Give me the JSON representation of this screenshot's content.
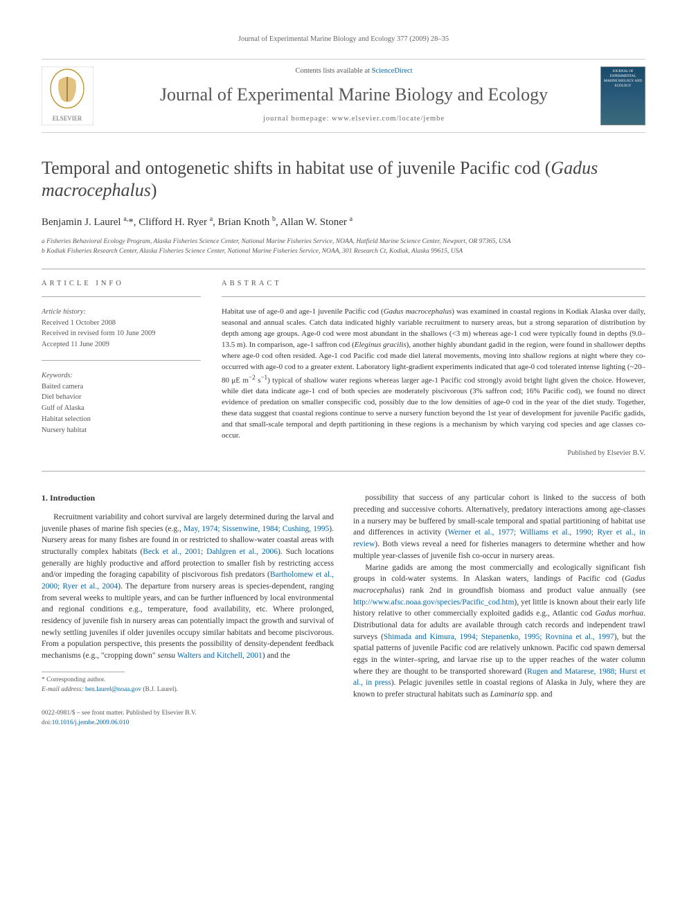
{
  "running_header": "Journal of Experimental Marine Biology and Ecology 377 (2009) 28–35",
  "masthead": {
    "contents_prefix": "Contents lists available at ",
    "contents_link": "ScienceDirect",
    "journal_name": "Journal of Experimental Marine Biology and Ecology",
    "homepage_prefix": "journal homepage: ",
    "homepage_url": "www.elsevier.com/locate/jembe",
    "cover_text": "JOURNAL OF EXPERIMENTAL MARINE BIOLOGY AND ECOLOGY"
  },
  "title_part1": "Temporal and ontogenetic shifts in habitat use of juvenile Pacific cod (",
  "title_species": "Gadus macrocephalus",
  "title_part2": ")",
  "authors_html": "Benjamin J. Laurel <sup>a,</sup>*, Clifford H. Ryer <sup>a</sup>, Brian Knoth <sup>b</sup>, Allan W. Stoner <sup>a</sup>",
  "affiliations": [
    "a Fisheries Behavioral Ecology Program, Alaska Fisheries Science Center, National Marine Fisheries Service, NOAA, Hatfield Marine Science Center, Newport, OR 97365, USA",
    "b Kodiak Fisheries Research Center, Alaska Fisheries Science Center, National Marine Fisheries Service, NOAA, 301 Research Ct, Kodiak, Alaska 99615, USA"
  ],
  "article_info": {
    "heading": "ARTICLE INFO",
    "history_label": "Article history:",
    "history": [
      "Received 1 October 2008",
      "Received in revised form 10 June 2009",
      "Accepted 11 June 2009"
    ],
    "keywords_label": "Keywords:",
    "keywords": [
      "Baited camera",
      "Diel behavior",
      "Gulf of Alaska",
      "Habitat selection",
      "Nursery habitat"
    ]
  },
  "abstract": {
    "heading": "ABSTRACT",
    "text_html": "Habitat use of age-0 and age-1 juvenile Pacific cod (<span class=\"species\">Gadus macrocephalus</span>) was examined in coastal regions in Kodiak Alaska over daily, seasonal and annual scales. Catch data indicated highly variable recruitment to nursery areas, but a strong separation of distribution by depth among age groups. Age-0 cod were most abundant in the shallows (<3 m) whereas age-1 cod were typically found in depths (9.0–13.5 m). In comparison, age-1 saffron cod (<span class=\"species\">Eleginus gracilis</span>), another highly abundant gadid in the region, were found in shallower depths where age-0 cod often resided. Age-1 cod Pacific cod made diel lateral movements, moving into shallow regions at night where they co-occurred with age-0 cod to a greater extent. Laboratory light-gradient experiments indicated that age-0 cod tolerated intense lighting (~20–80 μE m<sup>−2</sup> s<sup>−1</sup>) typical of shallow water regions whereas larger age-1 Pacific cod strongly avoid bright light given the choice. However, while diet data indicate age-1 cod of both species are moderately piscivorous (3% saffron cod; 16% Pacific cod), we found no direct evidence of predation on smaller conspecific cod, possibly due to the low densities of age-0 cod in the year of the diet study. Together, these data suggest that coastal regions continue to serve a nursery function beyond the 1st year of development for juvenile Pacific gadids, and that small-scale temporal and depth partitioning in these regions is a mechanism by which varying cod species and age classes co-occur.",
    "publisher_line": "Published by Elsevier B.V."
  },
  "body": {
    "section_number": "1.",
    "section_title": "Introduction",
    "para1_html": "Recruitment variability and cohort survival are largely determined during the larval and juvenile phases of marine fish species (e.g., <a href=\"#\">May, 1974; Sissenwine, 1984; Cushing, 1995</a>). Nursery areas for many fishes are found in or restricted to shallow-water coastal areas with structurally complex habitats (<a href=\"#\">Beck et al., 2001; Dahlgren et al., 2006</a>). Such locations generally are highly productive and afford protection to smaller fish by restricting access and/or impeding the foraging capability of piscivorous fish predators (<a href=\"#\">Bartholomew et al., 2000; Ryer et al., 2004</a>). The departure from nursery areas is species-dependent, ranging from several weeks to multiple years, and can be further influenced by local environmental and regional conditions e.g., temperature, food availability, etc. Where prolonged, residency of juvenile fish in nursery areas can potentially impact the growth and survival of newly settling juveniles if older juveniles occupy similar habitats and become piscivorous. From a population perspective, this presents the possibility of density-dependent feedback mechanisms (e.g., \"cropping down\" <span class=\"species\">sensu</span> <a href=\"#\">Walters and Kitchell, 2001</a>) and the",
    "para2_html": "possibility that success of any particular cohort is linked to the success of both preceding and successive cohorts. Alternatively, predatory interactions among age-classes in a nursery may be buffered by small-scale temporal and spatial partitioning of habitat use and differences in activity (<a href=\"#\">Werner et al., 1977; Williams et al., 1990; Ryer et al., in review</a>). Both views reveal a need for fisheries managers to determine whether and how multiple year-classes of juvenile fish co-occur in nursery areas.",
    "para3_html": "Marine gadids are among the most commercially and ecologically significant fish groups in cold-water systems. In Alaskan waters, landings of Pacific cod (<span class=\"species\">Gadus macrocephalus</span>) rank 2nd in groundfish biomass and product value annually (see <a href=\"#\">http://www.afsc.noaa.gov/species/Pacific_cod.htm</a>), yet little is known about their early life history relative to other commercially exploited gadids e.g., Atlantic cod <span class=\"species\">Gadus morhua</span>. Distributional data for adults are available through catch records and independent trawl surveys (<a href=\"#\">Shimada and Kimura, 1994; Stepanenko, 1995; Rovnina et al., 1997</a>), but the spatial patterns of juvenile Pacific cod are relatively unknown. Pacific cod spawn demersal eggs in the winter–spring, and larvae rise up to the upper reaches of the water column where they are thought to be transported shoreward (<a href=\"#\">Rugen and Matarese, 1988; Hurst et al., in press</a>). Pelagic juveniles settle in coastal regions of Alaska in July, where they are known to prefer structural habitats such as <span class=\"species\">Laminaria</span> spp. and"
  },
  "footnotes": {
    "corresponding": "* Corresponding author.",
    "email_label": "E-mail address: ",
    "email": "ben.laurel@noaa.gov",
    "email_suffix": " (B.J. Laurel)."
  },
  "bottom": {
    "front_matter": "0022-0981/$ – see front matter. Published by Elsevier B.V.",
    "doi_prefix": "doi:",
    "doi": "10.1016/j.jembe.2009.06.010"
  },
  "colors": {
    "text": "#333333",
    "muted": "#666666",
    "link": "#0066aa",
    "rule": "#aaaaaa",
    "journal_title": "#555555"
  }
}
